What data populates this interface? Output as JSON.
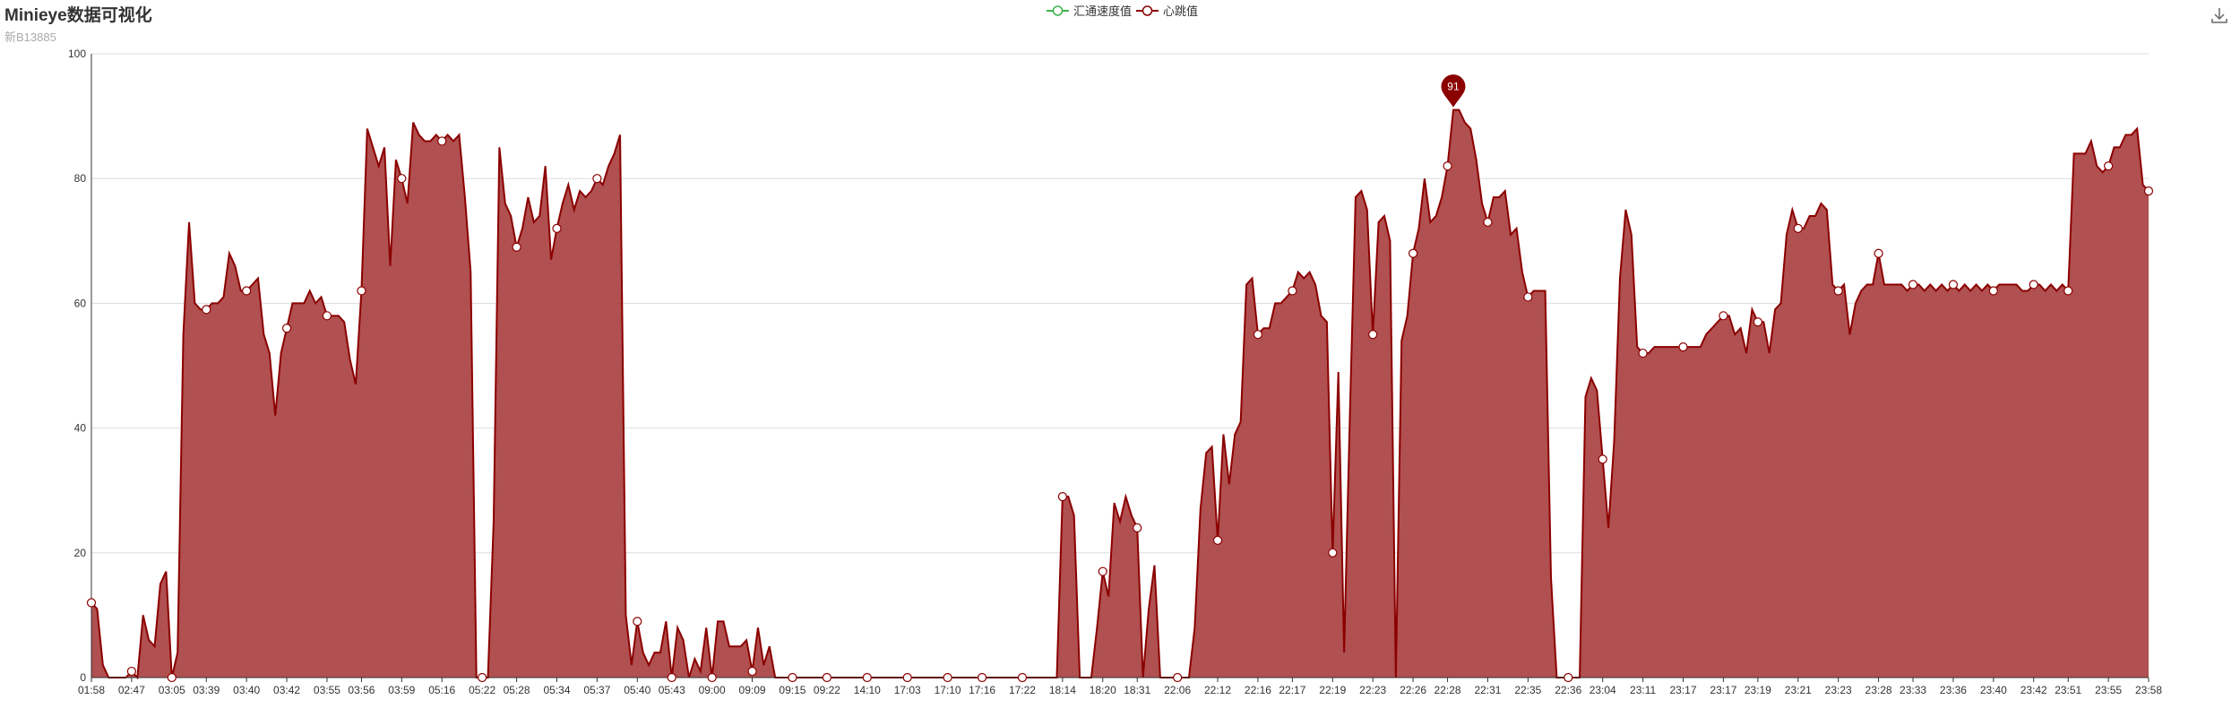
{
  "title": "Minieye数据可视化",
  "subtitle": "新B13885",
  "toolbar": {
    "download_icon": "download-icon"
  },
  "chart_data": {
    "type": "area",
    "legend": [
      {
        "name": "汇通速度值",
        "color": "#3fb34f"
      },
      {
        "name": "心跳值",
        "color": "#8b0000"
      }
    ],
    "ylim": [
      0,
      100
    ],
    "yticks": [
      0,
      20,
      40,
      60,
      80,
      100
    ],
    "grid": true,
    "legend_position": "top-center",
    "max_marker": {
      "value": 91,
      "label": "91"
    },
    "xtick_labels": [
      "01:58",
      "02:47",
      "03:05",
      "03:39",
      "03:40",
      "03:42",
      "03:55",
      "03:56",
      "03:59",
      "05:16",
      "05:22",
      "05:28",
      "05:34",
      "05:37",
      "05:40",
      "05:43",
      "09:00",
      "09:09",
      "09:15",
      "09:22",
      "14:10",
      "17:03",
      "17:10",
      "17:16",
      "17:22",
      "18:14",
      "18:20",
      "18:31",
      "22:06",
      "22:12",
      "22:16",
      "22:17",
      "22:19",
      "22:23",
      "22:26",
      "22:28",
      "22:31",
      "22:35",
      "22:36",
      "23:04",
      "23:11",
      "23:17",
      "23:17",
      "23:19",
      "23:21",
      "23:23",
      "23:28",
      "23:33",
      "23:36",
      "23:40",
      "23:42",
      "23:51",
      "23:55",
      "23:58"
    ],
    "series": [
      {
        "name": "汇通速度值",
        "color": "#3fb34f",
        "values": []
      },
      {
        "name": "心跳值",
        "color": "#8b0000",
        "fill": "#a73d3d",
        "values": [
          12,
          11,
          2,
          0,
          0,
          0,
          0,
          1,
          0,
          10,
          6,
          5,
          15,
          17,
          0,
          4,
          55,
          73,
          60,
          59,
          59,
          60,
          60,
          61,
          68,
          66,
          62,
          62,
          63,
          64,
          55,
          52,
          42,
          52,
          56,
          60,
          60,
          60,
          62,
          60,
          61,
          58,
          58,
          58,
          57,
          51,
          47,
          62,
          88,
          85,
          82,
          85,
          66,
          83,
          80,
          76,
          89,
          87,
          86,
          86,
          87,
          86,
          87,
          86,
          87,
          77,
          65,
          0,
          0,
          0,
          25,
          85,
          76,
          74,
          69,
          72,
          77,
          73,
          74,
          82,
          67,
          72,
          76,
          79,
          75,
          78,
          77,
          78,
          80,
          79,
          82,
          84,
          87,
          10,
          2,
          9,
          4,
          2,
          4,
          4,
          9,
          0,
          8,
          6,
          0,
          3,
          1,
          8,
          0,
          9,
          9,
          5,
          5,
          5,
          6,
          1,
          8,
          2,
          5,
          0,
          0,
          0,
          0,
          0,
          0,
          0,
          0,
          0,
          0,
          0,
          0,
          0,
          0,
          0,
          0,
          0,
          0,
          0,
          0,
          0,
          0,
          0,
          0,
          0,
          0,
          0,
          0,
          0,
          0,
          0,
          0,
          0,
          0,
          0,
          0,
          0,
          0,
          0,
          0,
          0,
          0,
          0,
          0,
          0,
          0,
          0,
          0,
          0,
          0,
          29,
          29,
          26,
          0,
          0,
          0,
          8,
          17,
          13,
          28,
          25,
          29,
          26,
          24,
          0,
          11,
          18,
          0,
          0,
          0,
          0,
          0,
          0,
          8,
          27,
          36,
          37,
          22,
          39,
          31,
          39,
          41,
          63,
          64,
          55,
          56,
          56,
          60,
          60,
          61,
          62,
          65,
          64,
          65,
          63,
          58,
          57,
          20,
          49,
          4,
          42,
          77,
          78,
          75,
          55,
          73,
          74,
          70,
          0,
          54,
          58,
          68,
          72,
          80,
          73,
          74,
          77,
          82,
          91,
          91,
          89,
          88,
          83,
          76,
          73,
          77,
          77,
          78,
          71,
          72,
          65,
          61,
          62,
          62,
          62,
          16,
          0,
          0,
          0,
          0,
          0,
          45,
          48,
          46,
          35,
          24,
          38,
          64,
          75,
          71,
          53,
          52,
          52,
          53,
          53,
          53,
          53,
          53,
          53,
          53,
          53,
          53,
          55,
          56,
          57,
          58,
          58,
          55,
          56,
          52,
          59,
          57,
          57,
          52,
          59,
          60,
          71,
          75,
          72,
          72,
          74,
          74,
          76,
          75,
          63,
          62,
          63,
          55,
          60,
          62,
          63,
          63,
          68,
          63,
          63,
          63,
          63,
          62,
          63,
          63,
          62,
          63,
          62,
          63,
          62,
          63,
          62,
          63,
          62,
          63,
          62,
          63,
          62,
          63,
          63,
          63,
          63,
          62,
          62,
          63,
          63,
          62,
          63,
          62,
          63,
          62,
          84,
          84,
          84,
          86,
          82,
          81,
          82,
          85,
          85,
          87,
          87,
          88,
          79,
          78
        ]
      }
    ]
  }
}
